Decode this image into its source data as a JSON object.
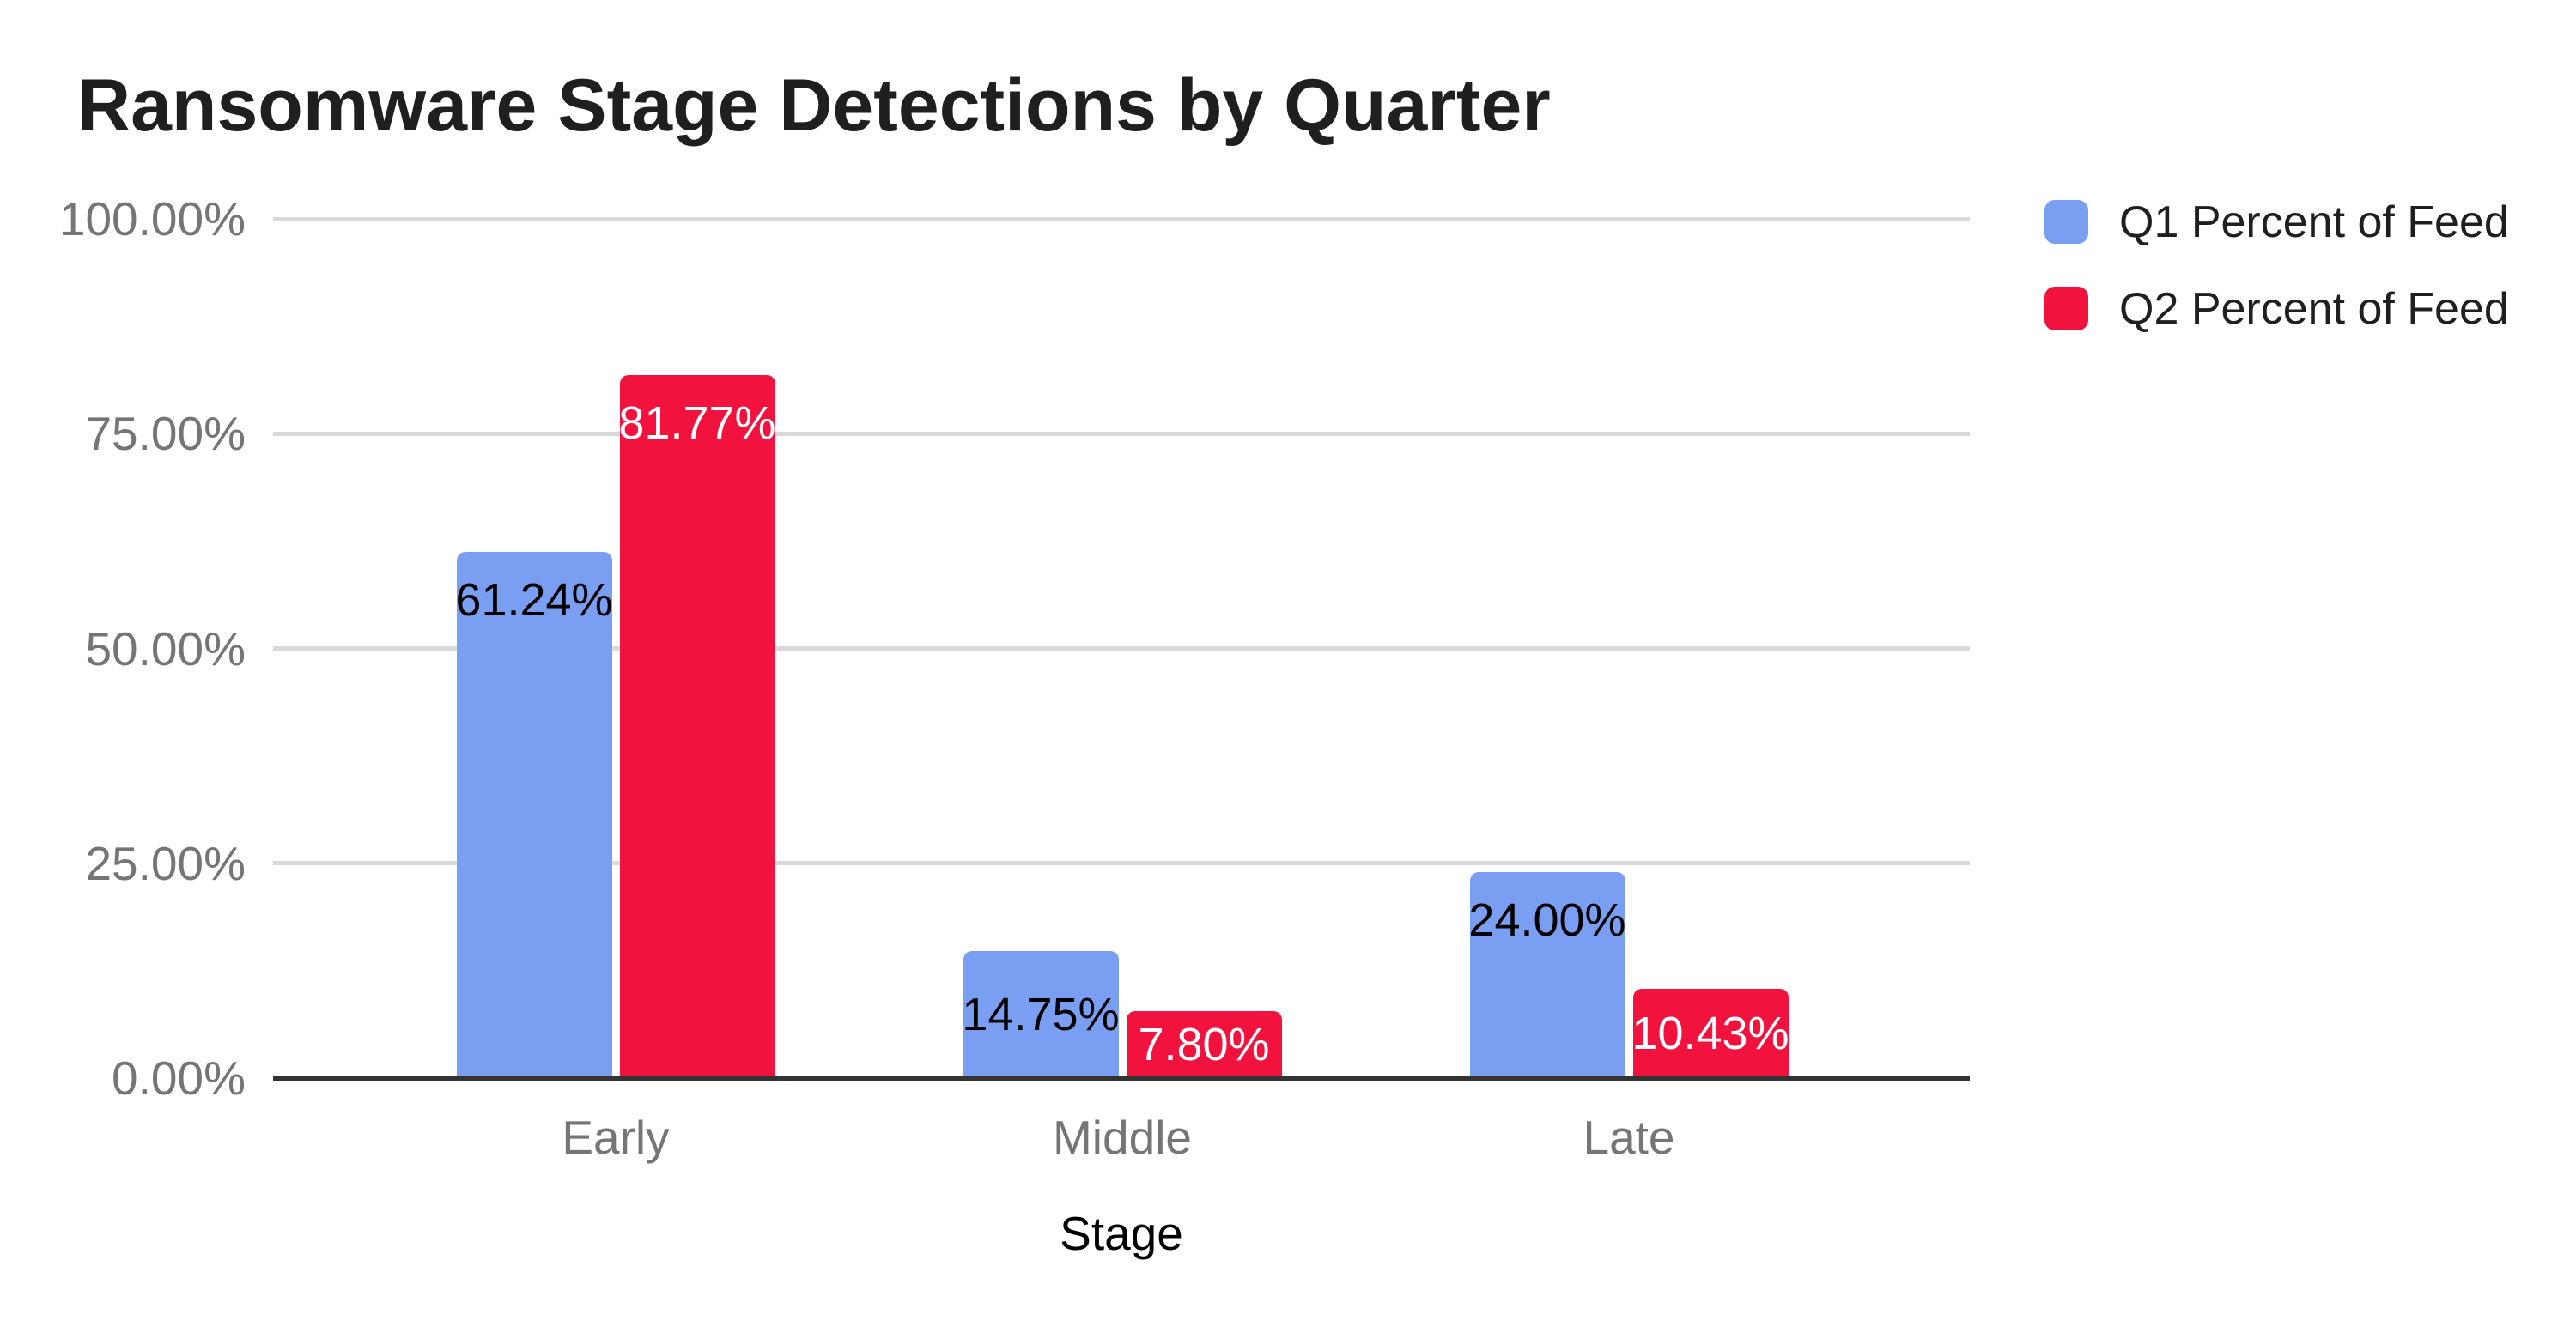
{
  "chart_data": {
    "type": "bar",
    "title": "Ransomware Stage Detections by Quarter",
    "xlabel": "Stage",
    "ylabel": "",
    "categories": [
      "Early",
      "Middle",
      "Late"
    ],
    "series": [
      {
        "name": "Q1 Percent of Feed",
        "color": "#7a9ff2",
        "label_color": "#000000",
        "values": [
          61.24,
          14.75,
          24.0
        ],
        "labels": [
          "61.24%",
          "14.75%",
          "24.00%"
        ]
      },
      {
        "name": "Q2 Percent of Feed",
        "color": "#f1133e",
        "label_color": "#ffffff",
        "values": [
          81.77,
          7.8,
          10.43
        ],
        "labels": [
          "81.77%",
          "7.80%",
          "10.43%"
        ]
      }
    ],
    "y_ticks": [
      {
        "label": "100.00%",
        "value": 100
      },
      {
        "label": "75.00%",
        "value": 75
      },
      {
        "label": "50.00%",
        "value": 50
      },
      {
        "label": "25.00%",
        "value": 25
      },
      {
        "label": "0.00%",
        "value": 0
      }
    ],
    "ylim": [
      0,
      100
    ],
    "grid": true,
    "legend_position": "right",
    "colors": {
      "gridline": "#d9d9d9",
      "axis_line": "#333333",
      "tick_text": "#757575",
      "category_text": "#757575",
      "title_text": "#1f1f1f",
      "legend_text": "#1f1f1f",
      "background": "#ffffff"
    }
  }
}
